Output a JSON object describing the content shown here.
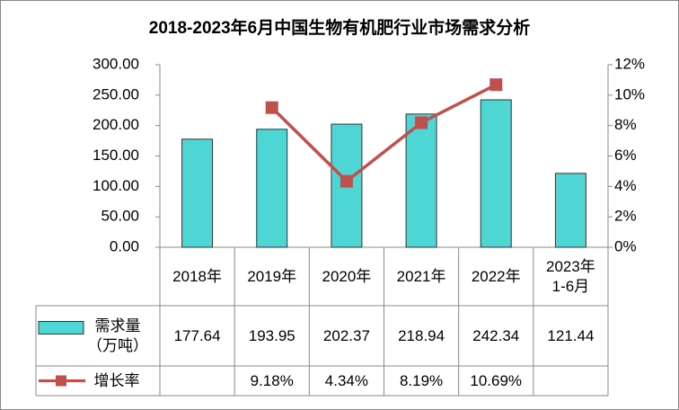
{
  "chart_data": {
    "type": "bar_line",
    "title": "2018-2023年6月中国生物有机肥行业市场需求分析",
    "categories": [
      "2018年",
      "2019年",
      "2020年",
      "2021年",
      "2022年",
      "2023年\n1-6月"
    ],
    "series": [
      {
        "name": "需求量\n（万吨）",
        "type": "bar",
        "color": "#4dd6d3",
        "values": [
          177.64,
          193.95,
          202.37,
          218.94,
          242.34,
          121.44
        ]
      },
      {
        "name": "增长率",
        "type": "line",
        "axis": "y2",
        "color": "#c0504d",
        "values": [
          null,
          9.18,
          4.34,
          8.19,
          10.69,
          null
        ],
        "value_labels": [
          null,
          "9.18%",
          "4.34%",
          "8.19%",
          "10.69%",
          null
        ]
      }
    ],
    "ylim": [
      0,
      300
    ],
    "yticks": [
      {
        "value": 0,
        "label": "0.00"
      },
      {
        "value": 50,
        "label": "50.00"
      },
      {
        "value": 100,
        "label": "100.00"
      },
      {
        "value": 150,
        "label": "150.00"
      },
      {
        "value": 200,
        "label": "200.00"
      },
      {
        "value": 250,
        "label": "250.00"
      },
      {
        "value": 300,
        "label": "300.00"
      }
    ],
    "y2lim": [
      0,
      12
    ],
    "y2ticks": [
      {
        "value": 0,
        "label": "0%"
      },
      {
        "value": 2,
        "label": "2%"
      },
      {
        "value": 4,
        "label": "4%"
      },
      {
        "value": 6,
        "label": "6%"
      },
      {
        "value": 8,
        "label": "8%"
      },
      {
        "value": 10,
        "label": "10%"
      },
      {
        "value": 12,
        "label": "12%"
      }
    ],
    "data_table": true
  }
}
